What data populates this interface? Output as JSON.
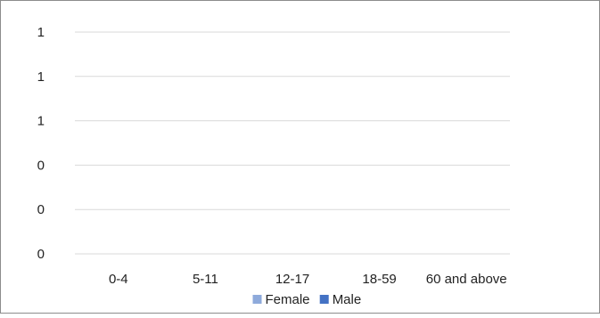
{
  "chart_data": {
    "type": "bar",
    "title": "",
    "xlabel": "",
    "ylabel": "",
    "categories": [
      "0-4",
      "5-11",
      "12-17",
      "18-59",
      "60 and above"
    ],
    "y_tick_labels": [
      "0",
      "0",
      "0",
      "1",
      "1",
      "1"
    ],
    "series": [
      {
        "name": "Female",
        "values": [
          0,
          0,
          0,
          0,
          0
        ],
        "color": "#8eaadb"
      },
      {
        "name": "Male",
        "values": [
          0,
          0,
          0,
          0,
          0
        ],
        "color": "#4472c4"
      }
    ],
    "ylim": [
      0,
      1
    ],
    "grid": true,
    "legend_position": "bottom",
    "gridline_color": "#d9d9d9",
    "border_color": "#8c8c8c"
  }
}
